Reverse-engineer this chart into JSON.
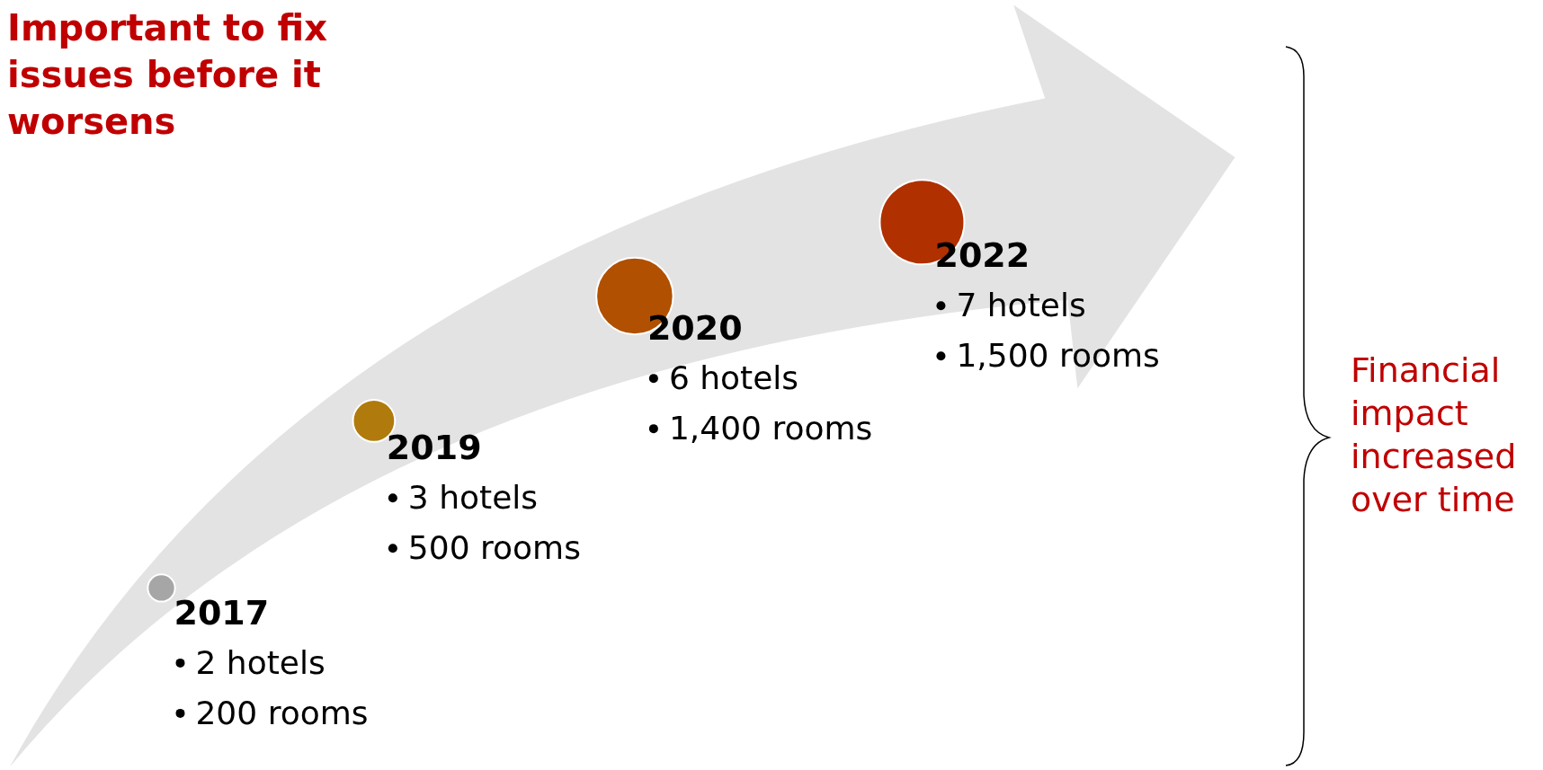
{
  "chart_data": {
    "type": "other",
    "title": "Important to fix issues before it worsens",
    "categories": [
      "2017",
      "2019",
      "2020",
      "2022"
    ],
    "colors": [
      "#a6a6a6",
      "#b07b0c",
      "#b05000",
      "#b03000"
    ],
    "series": [
      {
        "values": [
          2,
          3,
          6,
          7
        ],
        "value_labels": [
          "2 hotels",
          "3 hotels",
          "6 hotels",
          "7 hotels"
        ]
      },
      {
        "values": [
          200,
          500,
          1400,
          1500
        ],
        "value_labels": [
          "200 rooms",
          "500 rooms",
          "1,400 rooms",
          "1,500 rooms"
        ]
      }
    ],
    "annotations": [
      "Financial impact increased over time"
    ]
  }
}
